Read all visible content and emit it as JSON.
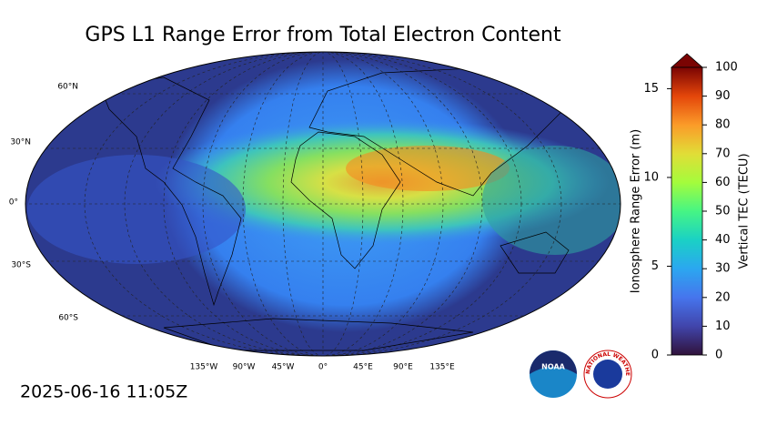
{
  "title": "GPS L1 Range Error from Total Electron Content",
  "timestamp": "2025-06-16 11:05Z",
  "map": {
    "lat_labels": [
      "60°N",
      "30°N",
      "0°",
      "30°S",
      "60°S"
    ],
    "lon_labels": [
      "135°W",
      "90°W",
      "45°W",
      "0°",
      "45°E",
      "90°E",
      "135°E"
    ]
  },
  "colorbar": {
    "range_error": {
      "label": "Ionosphere Range Error (m)",
      "lim": [
        0,
        16.2
      ],
      "ticks": [
        0,
        5,
        10,
        15
      ]
    },
    "tec": {
      "label": "Vertical TEC (TECU)",
      "lim": [
        0,
        100
      ],
      "ticks": [
        0,
        10,
        20,
        30,
        40,
        50,
        60,
        70,
        80,
        90,
        100
      ]
    }
  },
  "logos": {
    "noaa": "NOAA",
    "nws": "NATIONAL WEATHER SERVICE"
  }
}
